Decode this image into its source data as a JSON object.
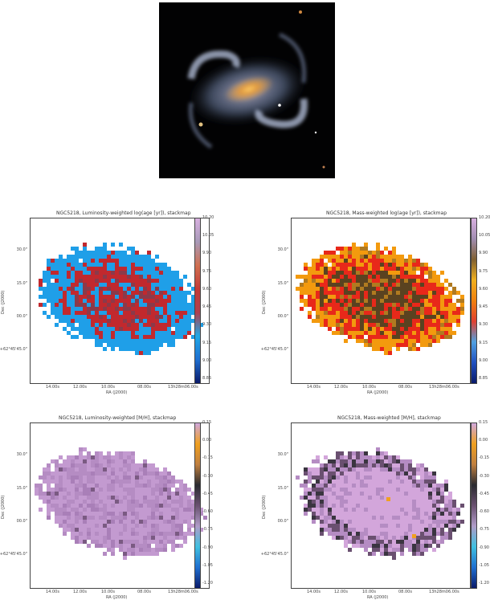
{
  "panels": [
    {
      "title": "NGC5218, Luminosity-weighted log(age [yr]), stackmap",
      "ylabel": "Dec (J2000)",
      "xlabel": "RA (J2000)",
      "yticks": [
        "30.0\"",
        "15.0\"",
        "00.0\"",
        "+62°45'45.0\""
      ],
      "xticks": [
        "14.00s",
        "12.00s",
        "10.00s",
        "08.00s",
        "13h28m06.00s"
      ],
      "cbticks": [
        "10.20",
        "10.05",
        "9.90",
        "9.75",
        "9.60",
        "9.45",
        "9.30",
        "9.15",
        "9.00",
        "8.85"
      ],
      "cmap": "blue-red",
      "colors": [
        "#1f9fe8",
        "#c1292e",
        "#8b3a4a",
        "#5a78b8"
      ]
    },
    {
      "title": "NGC5218, Mass-weighted log(age [yr]), stackmap",
      "ylabel": "Dec (J2000)",
      "xlabel": "RA (J2000)",
      "yticks": [
        "30.0\"",
        "15.0\"",
        "00.0\"",
        "+62°45'45.0\""
      ],
      "xticks": [
        "14.00s",
        "12.00s",
        "10.00s",
        "08.00s",
        "13h28m06.00s"
      ],
      "cbticks": [
        "10.20",
        "10.05",
        "9.90",
        "9.75",
        "9.60",
        "9.45",
        "9.30",
        "9.15",
        "9.00",
        "8.85"
      ],
      "cmap": "orange-red",
      "colors": [
        "#f39a0e",
        "#e8281a",
        "#5a4220",
        "#b07a20"
      ]
    },
    {
      "title": "NGC5218, Luminosity-weighted [M/H], stackmap",
      "ylabel": "Dec (J2000)",
      "xlabel": "RA (J2000)",
      "yticks": [
        "30.0\"",
        "15.0\"",
        "00.0\"",
        "+62°45'45.0\""
      ],
      "xticks": [
        "14.00s",
        "12.00s",
        "10.00s",
        "08.00s",
        "13h28m06.00s"
      ],
      "cbticks": [
        "0.15",
        "0.00",
        "-0.15",
        "-0.30",
        "-0.45",
        "-0.60",
        "-0.75",
        "-0.90",
        "-1.05",
        "-1.20"
      ],
      "cmap": "lilac",
      "colors": [
        "#c39ad0",
        "#b58cc3",
        "#a97fb8",
        "#7a5a82"
      ]
    },
    {
      "title": "NGC5218, Mass-weighted [M/H], stackmap",
      "ylabel": "Dec (J2000)",
      "xlabel": "RA (J2000)",
      "yticks": [
        "30.0\"",
        "15.0\"",
        "00.0\"",
        "+62°45'45.0\""
      ],
      "xticks": [
        "14.00s",
        "12.00s",
        "10.00s",
        "08.00s",
        "13h28m06.00s"
      ],
      "cbticks": [
        "0.15",
        "0.00",
        "-0.15",
        "-0.30",
        "-0.45",
        "-0.60",
        "-0.75",
        "-0.90",
        "-1.05",
        "-1.20"
      ],
      "cmap": "lilac-dark",
      "colors": [
        "#d3a6db",
        "#b58cc3",
        "#6a5070",
        "#3a3540"
      ]
    }
  ]
}
